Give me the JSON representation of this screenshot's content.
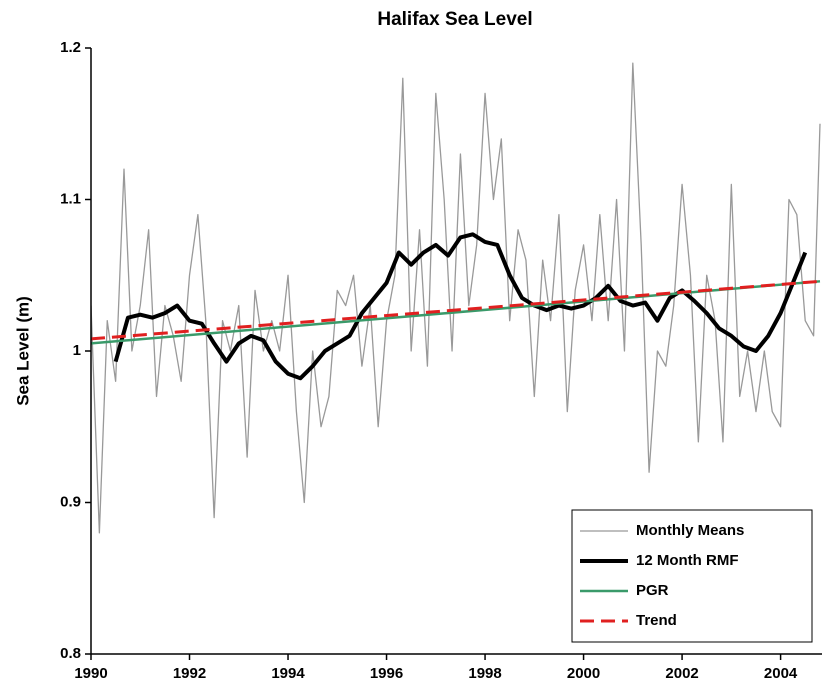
{
  "chart_data": {
    "type": "line",
    "title": "Halifax Sea Level",
    "y_label": "Sea Level (m)",
    "xlim": [
      1990,
      2004.8
    ],
    "xticks": [
      1990,
      1992,
      1994,
      1996,
      1998,
      2000,
      2002,
      2004
    ],
    "ylim": [
      0.8,
      1.2
    ],
    "yticks": [
      0.8,
      0.9,
      1,
      1.1,
      1.2
    ],
    "legend": "lower right",
    "series": [
      {
        "name": "Monthly Means",
        "color": "#999999",
        "width": 1.3,
        "dashed": false,
        "x": [
          1990,
          1990.17,
          1990.33,
          1990.5,
          1990.67,
          1990.83,
          1991,
          1991.17,
          1991.33,
          1991.5,
          1991.67,
          1991.83,
          1992,
          1992.17,
          1992.33,
          1992.5,
          1992.67,
          1992.83,
          1993,
          1993.17,
          1993.33,
          1993.5,
          1993.67,
          1993.83,
          1994,
          1994.17,
          1994.33,
          1994.5,
          1994.67,
          1994.83,
          1995,
          1995.17,
          1995.33,
          1995.5,
          1995.67,
          1995.83,
          1996,
          1996.17,
          1996.33,
          1996.5,
          1996.67,
          1996.83,
          1997,
          1997.17,
          1997.33,
          1997.5,
          1997.67,
          1997.83,
          1998,
          1998.17,
          1998.33,
          1998.5,
          1998.67,
          1998.83,
          1999,
          1999.17,
          1999.33,
          1999.5,
          1999.67,
          1999.83,
          2000,
          2000.17,
          2000.33,
          2000.5,
          2000.67,
          2000.83,
          2001,
          2001.17,
          2001.33,
          2001.5,
          2001.67,
          2001.83,
          2002,
          2002.17,
          2002.33,
          2002.5,
          2002.67,
          2002.83,
          2003,
          2003.17,
          2003.33,
          2003.5,
          2003.67,
          2003.83,
          2004,
          2004.17,
          2004.33,
          2004.5,
          2004.67,
          2004.8
        ],
        "values": [
          1.03,
          0.88,
          1.02,
          0.98,
          1.12,
          1.0,
          1.03,
          1.08,
          0.97,
          1.03,
          1.01,
          0.98,
          1.05,
          1.09,
          1.02,
          0.89,
          1.02,
          1.0,
          1.03,
          0.93,
          1.04,
          1.0,
          1.02,
          1.0,
          1.05,
          0.96,
          0.9,
          1.0,
          0.95,
          0.97,
          1.04,
          1.03,
          1.05,
          0.99,
          1.03,
          0.95,
          1.02,
          1.05,
          1.18,
          1.0,
          1.08,
          0.99,
          1.17,
          1.1,
          1.0,
          1.13,
          1.03,
          1.07,
          1.17,
          1.1,
          1.14,
          1.02,
          1.08,
          1.06,
          0.97,
          1.06,
          1.02,
          1.09,
          0.96,
          1.04,
          1.07,
          1.02,
          1.09,
          1.02,
          1.1,
          1.0,
          1.19,
          1.07,
          0.92,
          1.0,
          0.99,
          1.03,
          1.11,
          1.05,
          0.94,
          1.05,
          1.02,
          0.94,
          1.11,
          0.97,
          1.0,
          0.96,
          1.0,
          0.96,
          0.95,
          1.1,
          1.09,
          1.02,
          1.01,
          1.15
        ]
      },
      {
        "name": "12 Month RMF",
        "color": "#000000",
        "width": 4,
        "dashed": false,
        "x": [
          1990.5,
          1990.75,
          1991,
          1991.25,
          1991.5,
          1991.75,
          1992,
          1992.25,
          1992.5,
          1992.75,
          1993,
          1993.25,
          1993.5,
          1993.75,
          1994,
          1994.25,
          1994.5,
          1994.75,
          1995,
          1995.25,
          1995.5,
          1995.75,
          1996,
          1996.25,
          1996.5,
          1996.75,
          1997,
          1997.25,
          1997.5,
          1997.75,
          1998,
          1998.25,
          1998.5,
          1998.75,
          1999,
          1999.25,
          1999.5,
          1999.75,
          2000,
          2000.25,
          2000.5,
          2000.75,
          2001,
          2001.25,
          2001.5,
          2001.75,
          2002,
          2002.25,
          2002.5,
          2002.75,
          2003,
          2003.25,
          2003.5,
          2003.75,
          2004,
          2004.25,
          2004.5
        ],
        "values": [
          0.993,
          1.022,
          1.024,
          1.022,
          1.025,
          1.03,
          1.02,
          1.018,
          1.005,
          0.993,
          1.005,
          1.01,
          1.007,
          0.993,
          0.985,
          0.982,
          0.99,
          1.0,
          1.005,
          1.01,
          1.025,
          1.035,
          1.045,
          1.065,
          1.057,
          1.065,
          1.07,
          1.063,
          1.075,
          1.077,
          1.072,
          1.07,
          1.05,
          1.035,
          1.03,
          1.027,
          1.03,
          1.028,
          1.03,
          1.035,
          1.043,
          1.033,
          1.03,
          1.032,
          1.02,
          1.035,
          1.04,
          1.033,
          1.025,
          1.015,
          1.01,
          1.003,
          1.0,
          1.01,
          1.025,
          1.045,
          1.065
        ]
      },
      {
        "name": "PGR",
        "color": "#3a9a6a",
        "width": 2.5,
        "dashed": false,
        "x": [
          1990,
          2004.8
        ],
        "values": [
          1.005,
          1.046
        ]
      },
      {
        "name": "Trend",
        "color": "#e02020",
        "width": 3,
        "dashed": true,
        "x": [
          1990,
          2004.8
        ],
        "values": [
          1.008,
          1.046
        ]
      }
    ]
  }
}
